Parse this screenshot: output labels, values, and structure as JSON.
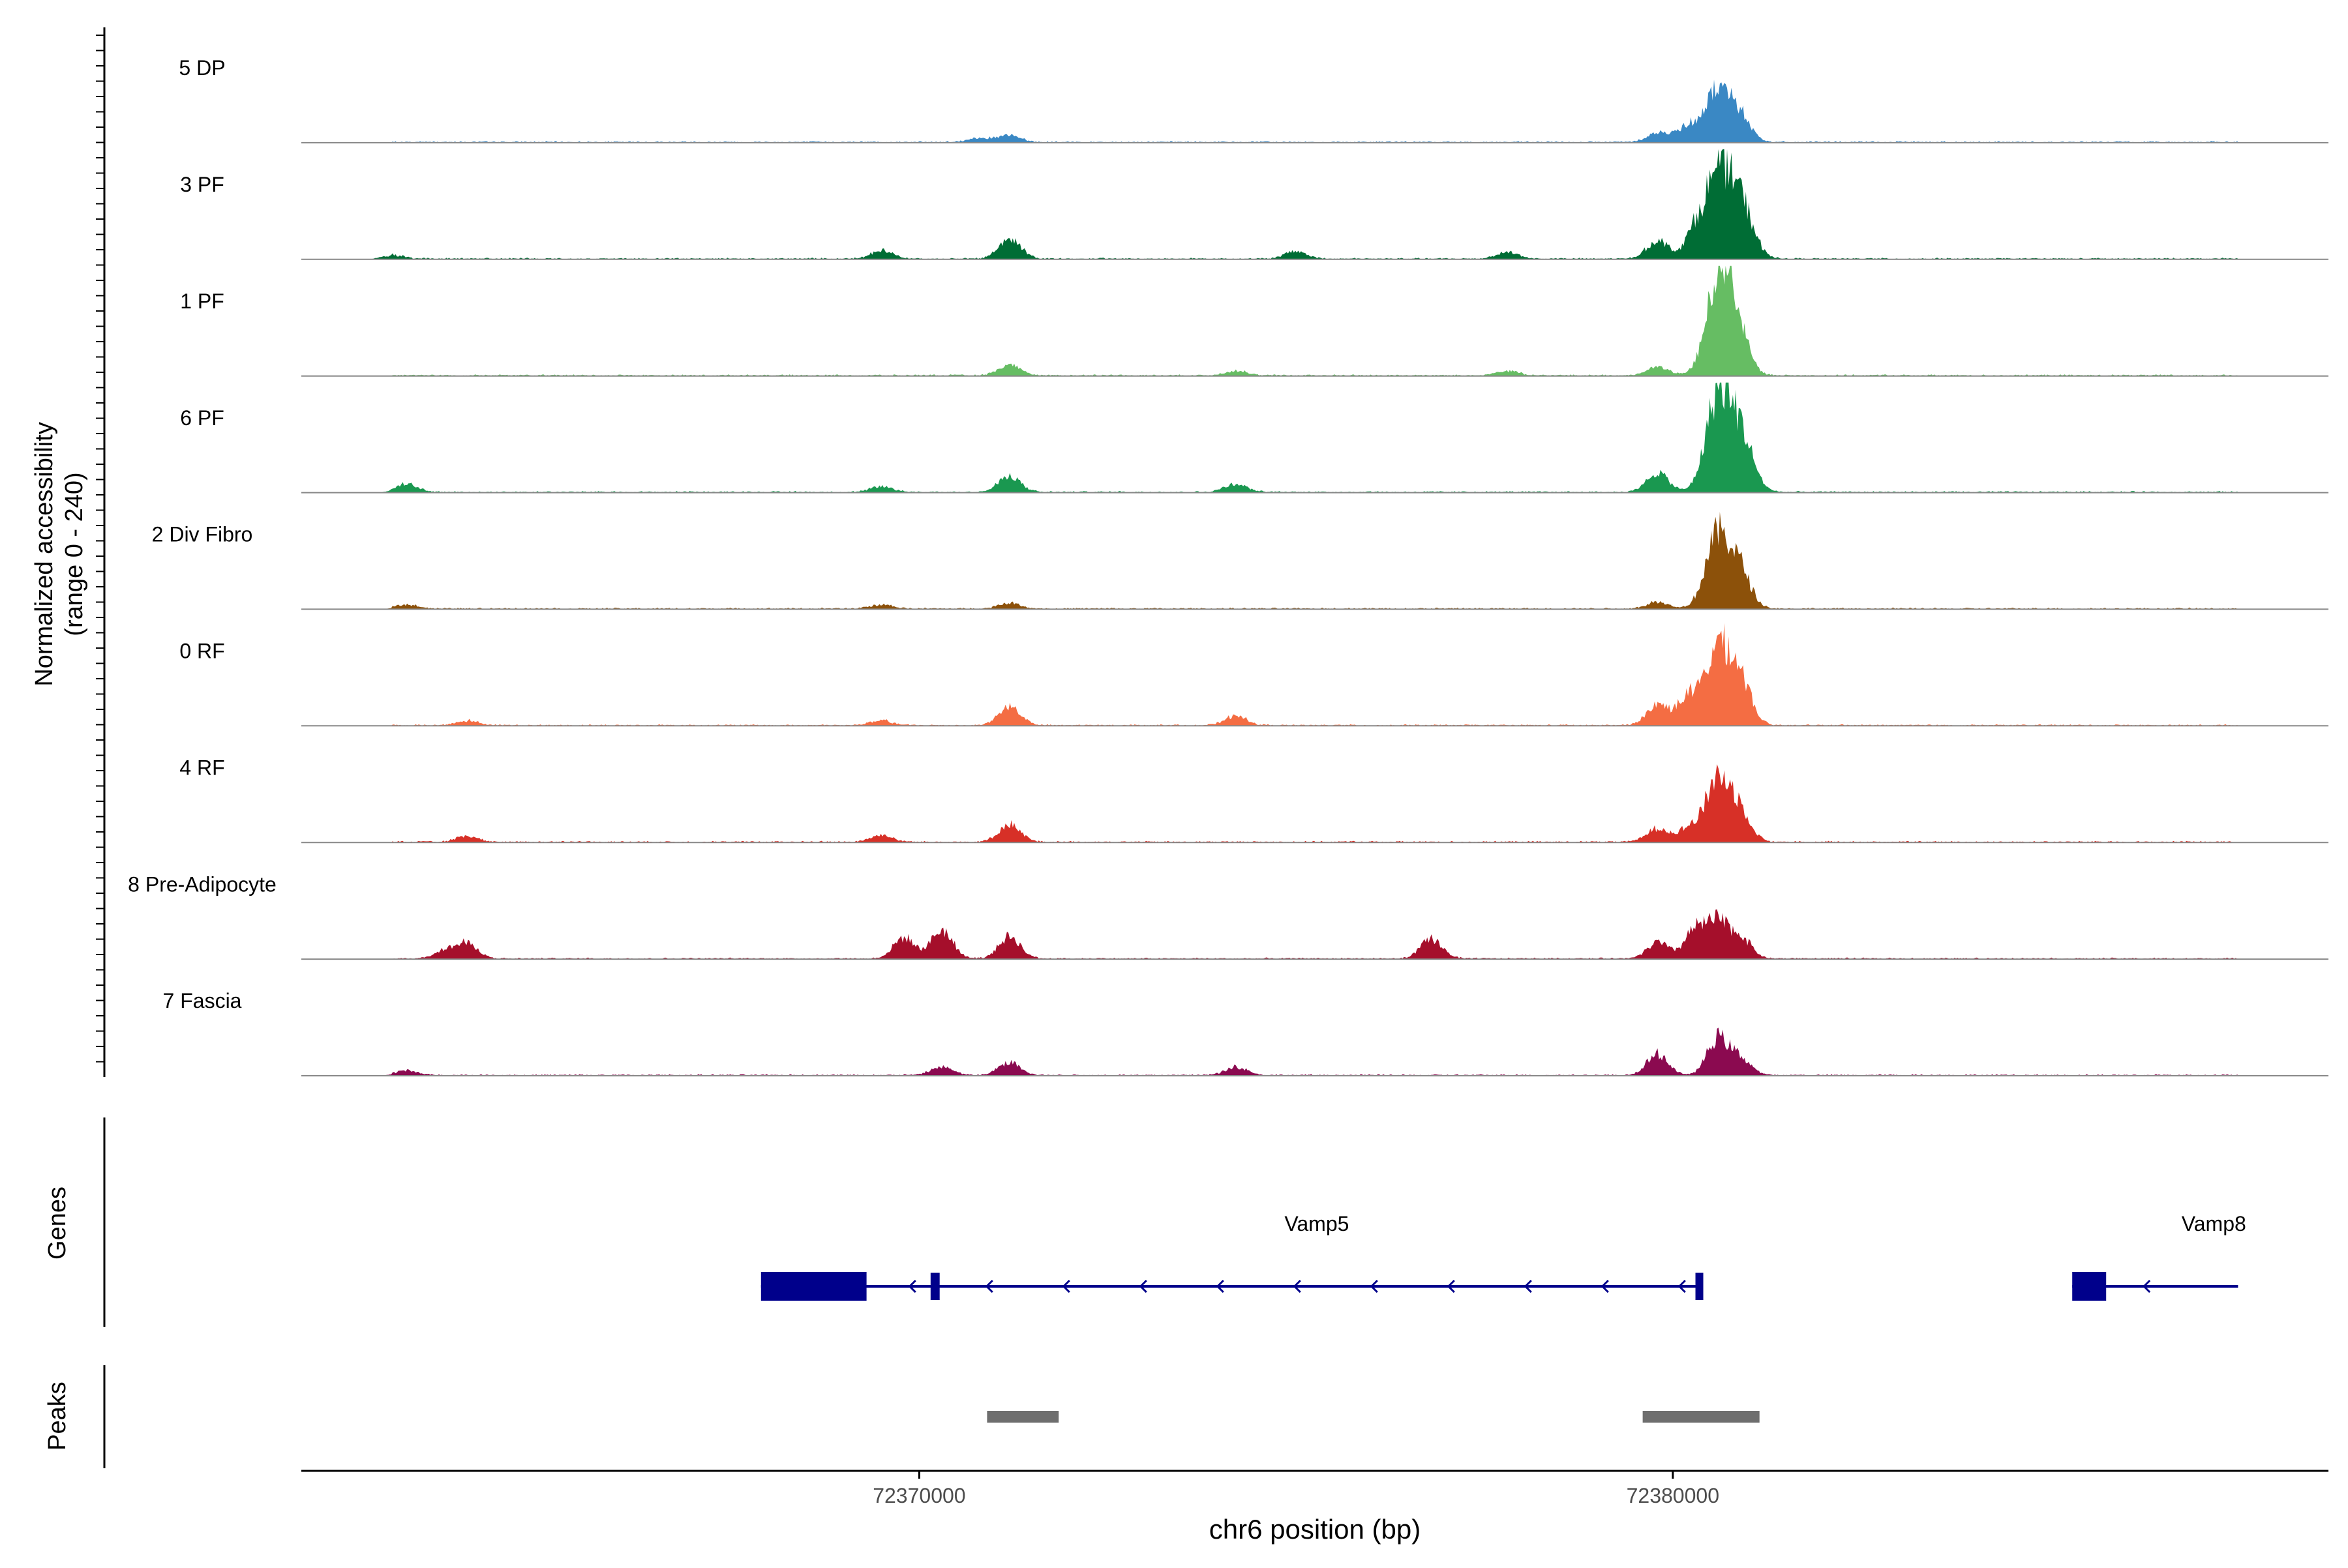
{
  "chart_data": {
    "type": "area",
    "chromosome": "chr6",
    "xlabel": "chr6 position (bp)",
    "xticks": [
      72370000,
      72380000
    ],
    "xlim": [
      72361800,
      72388700
    ],
    "coverage": {
      "ylabel_line1": "Normalized accessibility",
      "ylabel_line2": "(range 0 - 240)",
      "ylim": [
        0,
        240
      ],
      "grid": false,
      "peak_location_bp": [
        72371200,
        72377800,
        72379800,
        72380600
      ],
      "series": [
        {
          "name": "5 DP",
          "color": "#3a88c4",
          "peaks": [
            {
              "x": 72370800,
              "y": 10
            },
            {
              "x": 72371200,
              "y": 14
            },
            {
              "x": 72379800,
              "y": 20
            },
            {
              "x": 72380200,
              "y": 35
            },
            {
              "x": 72380600,
              "y": 118
            },
            {
              "x": 72380900,
              "y": 52
            }
          ]
        },
        {
          "name": "3 PF",
          "color": "#006d35",
          "peaks": [
            {
              "x": 72363000,
              "y": 8
            },
            {
              "x": 72369500,
              "y": 18
            },
            {
              "x": 72371200,
              "y": 45
            },
            {
              "x": 72375000,
              "y": 16
            },
            {
              "x": 72377800,
              "y": 15
            },
            {
              "x": 72379800,
              "y": 40
            },
            {
              "x": 72380300,
              "y": 55
            },
            {
              "x": 72380600,
              "y": 175
            },
            {
              "x": 72380900,
              "y": 118
            }
          ]
        },
        {
          "name": "1 PF",
          "color": "#66bd63",
          "peaks": [
            {
              "x": 72371200,
              "y": 22
            },
            {
              "x": 72374200,
              "y": 10
            },
            {
              "x": 72377800,
              "y": 10
            },
            {
              "x": 72379800,
              "y": 18
            },
            {
              "x": 72380600,
              "y": 180
            },
            {
              "x": 72380800,
              "y": 125
            }
          ]
        },
        {
          "name": "6 PF",
          "color": "#1a9850",
          "peaks": [
            {
              "x": 72363200,
              "y": 18
            },
            {
              "x": 72369500,
              "y": 12
            },
            {
              "x": 72371200,
              "y": 35
            },
            {
              "x": 72374200,
              "y": 18
            },
            {
              "x": 72379800,
              "y": 42
            },
            {
              "x": 72380600,
              "y": 205
            },
            {
              "x": 72380900,
              "y": 120
            }
          ]
        },
        {
          "name": "2 Div Fibro",
          "color": "#8c510a",
          "peaks": [
            {
              "x": 72363200,
              "y": 9
            },
            {
              "x": 72369500,
              "y": 8
            },
            {
              "x": 72371200,
              "y": 12
            },
            {
              "x": 72379800,
              "y": 15
            },
            {
              "x": 72380600,
              "y": 160
            },
            {
              "x": 72380900,
              "y": 75
            }
          ]
        },
        {
          "name": "0 RF",
          "color": "#f46d43",
          "peaks": [
            {
              "x": 72364000,
              "y": 10
            },
            {
              "x": 72369500,
              "y": 10
            },
            {
              "x": 72371200,
              "y": 42
            },
            {
              "x": 72374200,
              "y": 20
            },
            {
              "x": 72379800,
              "y": 45
            },
            {
              "x": 72380200,
              "y": 60
            },
            {
              "x": 72380600,
              "y": 170
            },
            {
              "x": 72380900,
              "y": 95
            }
          ]
        },
        {
          "name": "4 RF",
          "color": "#d73027",
          "peaks": [
            {
              "x": 72364000,
              "y": 12
            },
            {
              "x": 72369500,
              "y": 15
            },
            {
              "x": 72371200,
              "y": 38
            },
            {
              "x": 72379800,
              "y": 30
            },
            {
              "x": 72380200,
              "y": 28
            },
            {
              "x": 72380600,
              "y": 140
            },
            {
              "x": 72380900,
              "y": 60
            }
          ]
        },
        {
          "name": "8 Pre-Adipocyte",
          "color": "#a50f2b",
          "peaks": [
            {
              "x": 72363700,
              "y": 18
            },
            {
              "x": 72364000,
              "y": 32
            },
            {
              "x": 72369800,
              "y": 45
            },
            {
              "x": 72370300,
              "y": 62
            },
            {
              "x": 72371200,
              "y": 48
            },
            {
              "x": 72376800,
              "y": 42
            },
            {
              "x": 72379800,
              "y": 35
            },
            {
              "x": 72380300,
              "y": 62
            },
            {
              "x": 72380600,
              "y": 75
            },
            {
              "x": 72380900,
              "y": 45
            }
          ]
        },
        {
          "name": "7 Fascia",
          "color": "#8b0a50",
          "peaks": [
            {
              "x": 72363200,
              "y": 10
            },
            {
              "x": 72370300,
              "y": 18
            },
            {
              "x": 72371200,
              "y": 28
            },
            {
              "x": 72374200,
              "y": 18
            },
            {
              "x": 72379800,
              "y": 45
            },
            {
              "x": 72380600,
              "y": 80
            },
            {
              "x": 72380900,
              "y": 35
            }
          ]
        }
      ]
    },
    "genes": {
      "ylabel": "Genes",
      "color": "#00008b",
      "items": [
        {
          "name": "Vamp5",
          "start": 72367900,
          "end": 72380400,
          "strand": "-",
          "exons": [
            [
              72367900,
              72369300
            ],
            [
              72370150,
              72370270
            ],
            [
              72380300,
              72380400
            ]
          ]
        },
        {
          "name": "Vamp8",
          "start": 72385300,
          "end": 72387500,
          "strand": "-",
          "exons": [
            [
              72385300,
              72385750
            ]
          ]
        }
      ]
    },
    "peaks_track": {
      "ylabel": "Peaks",
      "color": "#6e6e6e",
      "regions": [
        [
          72370900,
          72371850
        ],
        [
          72379600,
          72381150
        ]
      ]
    }
  }
}
